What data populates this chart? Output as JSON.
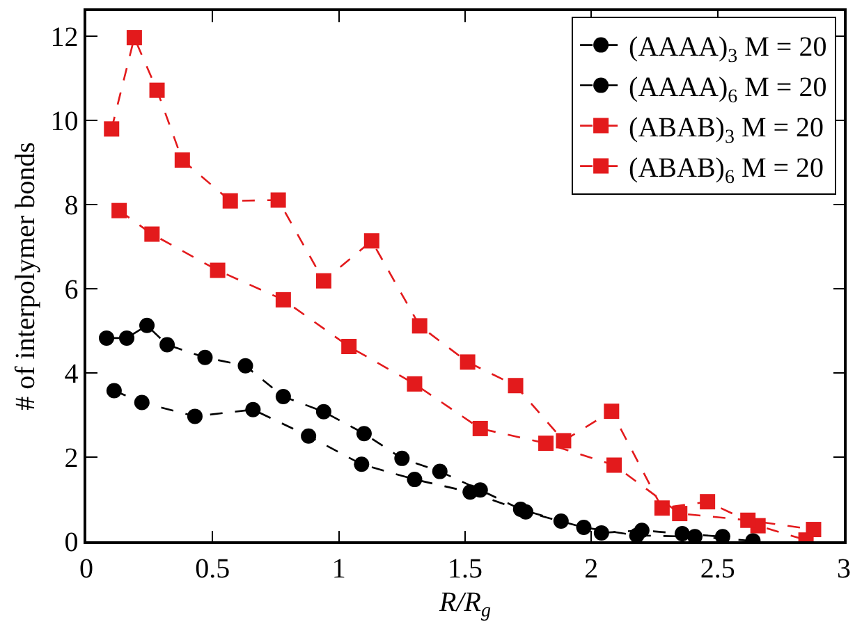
{
  "chart_data": {
    "type": "line",
    "xlabel": "R/R$_{g}$",
    "ylabel": "# of interpolymer bonds",
    "xlim": [
      0,
      3
    ],
    "ylim": [
      0,
      12.6
    ],
    "xticks": [
      0,
      0.5,
      1,
      1.5,
      2,
      2.5,
      3
    ],
    "yticks": [
      0,
      2,
      4,
      6,
      8,
      10,
      12
    ],
    "grid": false,
    "legend": "top right",
    "line_style": "dashed",
    "series": [
      {
        "name": "(AAAA)$_{3}$ M = 20",
        "color": "#000000",
        "marker": "circle",
        "x": [
          0.11,
          0.22,
          0.43,
          0.66,
          0.88,
          1.09,
          1.3,
          1.52,
          1.74,
          1.97,
          2.18,
          2.41,
          2.64
        ],
        "values": [
          3.58,
          3.3,
          2.97,
          3.13,
          2.5,
          1.83,
          1.47,
          1.17,
          0.7,
          0.33,
          0.14,
          0.11,
          0.01
        ]
      },
      {
        "name": "(AAAA)$_{6}$ M = 20",
        "color": "#000000",
        "marker": "circle",
        "x": [
          0.08,
          0.16,
          0.24,
          0.32,
          0.47,
          0.63,
          0.78,
          0.94,
          1.1,
          1.25,
          1.4,
          1.56,
          1.72,
          1.88,
          2.04,
          2.2,
          2.36,
          2.52
        ],
        "values": [
          4.83,
          4.83,
          5.13,
          4.67,
          4.37,
          4.17,
          3.44,
          3.08,
          2.56,
          1.97,
          1.66,
          1.22,
          0.76,
          0.48,
          0.2,
          0.26,
          0.18,
          0.11
        ]
      },
      {
        "name": "(ABAB)$_{3}$ M = 20",
        "color": "#e31a1c",
        "marker": "square",
        "x": [
          0.13,
          0.26,
          0.52,
          0.78,
          1.04,
          1.3,
          1.56,
          1.82,
          2.09,
          2.35,
          2.62,
          2.88
        ],
        "values": [
          7.86,
          7.3,
          6.44,
          5.74,
          4.63,
          3.74,
          2.68,
          2.33,
          1.81,
          0.66,
          0.5,
          0.28
        ]
      },
      {
        "name": "(ABAB)$_{6}$ M = 20",
        "color": "#e31a1c",
        "marker": "square",
        "x": [
          0.1,
          0.19,
          0.28,
          0.38,
          0.57,
          0.76,
          0.94,
          1.13,
          1.32,
          1.51,
          1.7,
          1.89,
          2.08,
          2.28,
          2.46,
          2.66,
          2.85
        ],
        "values": [
          9.8,
          11.97,
          10.72,
          9.06,
          8.09,
          8.11,
          6.19,
          7.14,
          5.12,
          4.26,
          3.7,
          2.39,
          3.09,
          0.79,
          0.94,
          0.37,
          0.03
        ]
      }
    ]
  }
}
